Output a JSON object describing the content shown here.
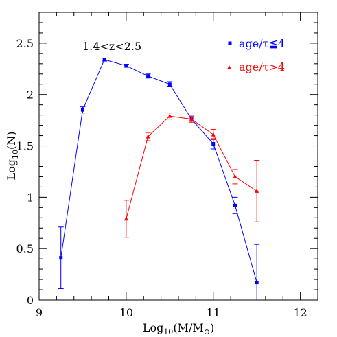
{
  "chart_data": {
    "type": "line",
    "title": "",
    "annotation": "1.4<z<2.5",
    "xlabel": "Log",
    "xlabel_sub": "10",
    "xlabel_rest": "(M/M",
    "xlabel_sub2": "⊙",
    "xlabel_close": ")",
    "ylabel": "Log",
    "ylabel_sub": "10",
    "ylabel_rest": "(N)",
    "xlim": [
      9,
      12.2
    ],
    "ylim": [
      0,
      2.8
    ],
    "x_ticks": [
      9,
      10,
      11,
      12
    ],
    "x_tick_labels": [
      "9",
      "10",
      "11",
      "12"
    ],
    "y_ticks": [
      0,
      0.5,
      1,
      1.5,
      2,
      2.5
    ],
    "y_tick_labels": [
      "0",
      "0.5",
      "1",
      "1.5",
      "2",
      "2.5"
    ],
    "legend_position": "top-right",
    "series": [
      {
        "name": "age/τ≦4",
        "color": "#0000ff",
        "marker": "square",
        "x": [
          9.25,
          9.5,
          9.75,
          10.0,
          10.25,
          10.5,
          10.75,
          11.0,
          11.25,
          11.5
        ],
        "y": [
          0.41,
          1.85,
          2.34,
          2.28,
          2.18,
          2.1,
          1.76,
          1.52,
          0.92,
          0.17
        ],
        "err": [
          0.3,
          0.03,
          0.015,
          0.015,
          0.02,
          0.025,
          0.03,
          0.05,
          0.08,
          0.37
        ]
      },
      {
        "name": "age/τ>4",
        "color": "#ff0000",
        "marker": "triangle",
        "x": [
          10.0,
          10.25,
          10.5,
          10.75,
          11.0,
          11.25,
          11.5
        ],
        "y": [
          0.79,
          1.59,
          1.79,
          1.76,
          1.61,
          1.2,
          1.06
        ],
        "err": [
          0.18,
          0.04,
          0.03,
          0.03,
          0.05,
          0.07,
          0.3
        ]
      }
    ]
  }
}
